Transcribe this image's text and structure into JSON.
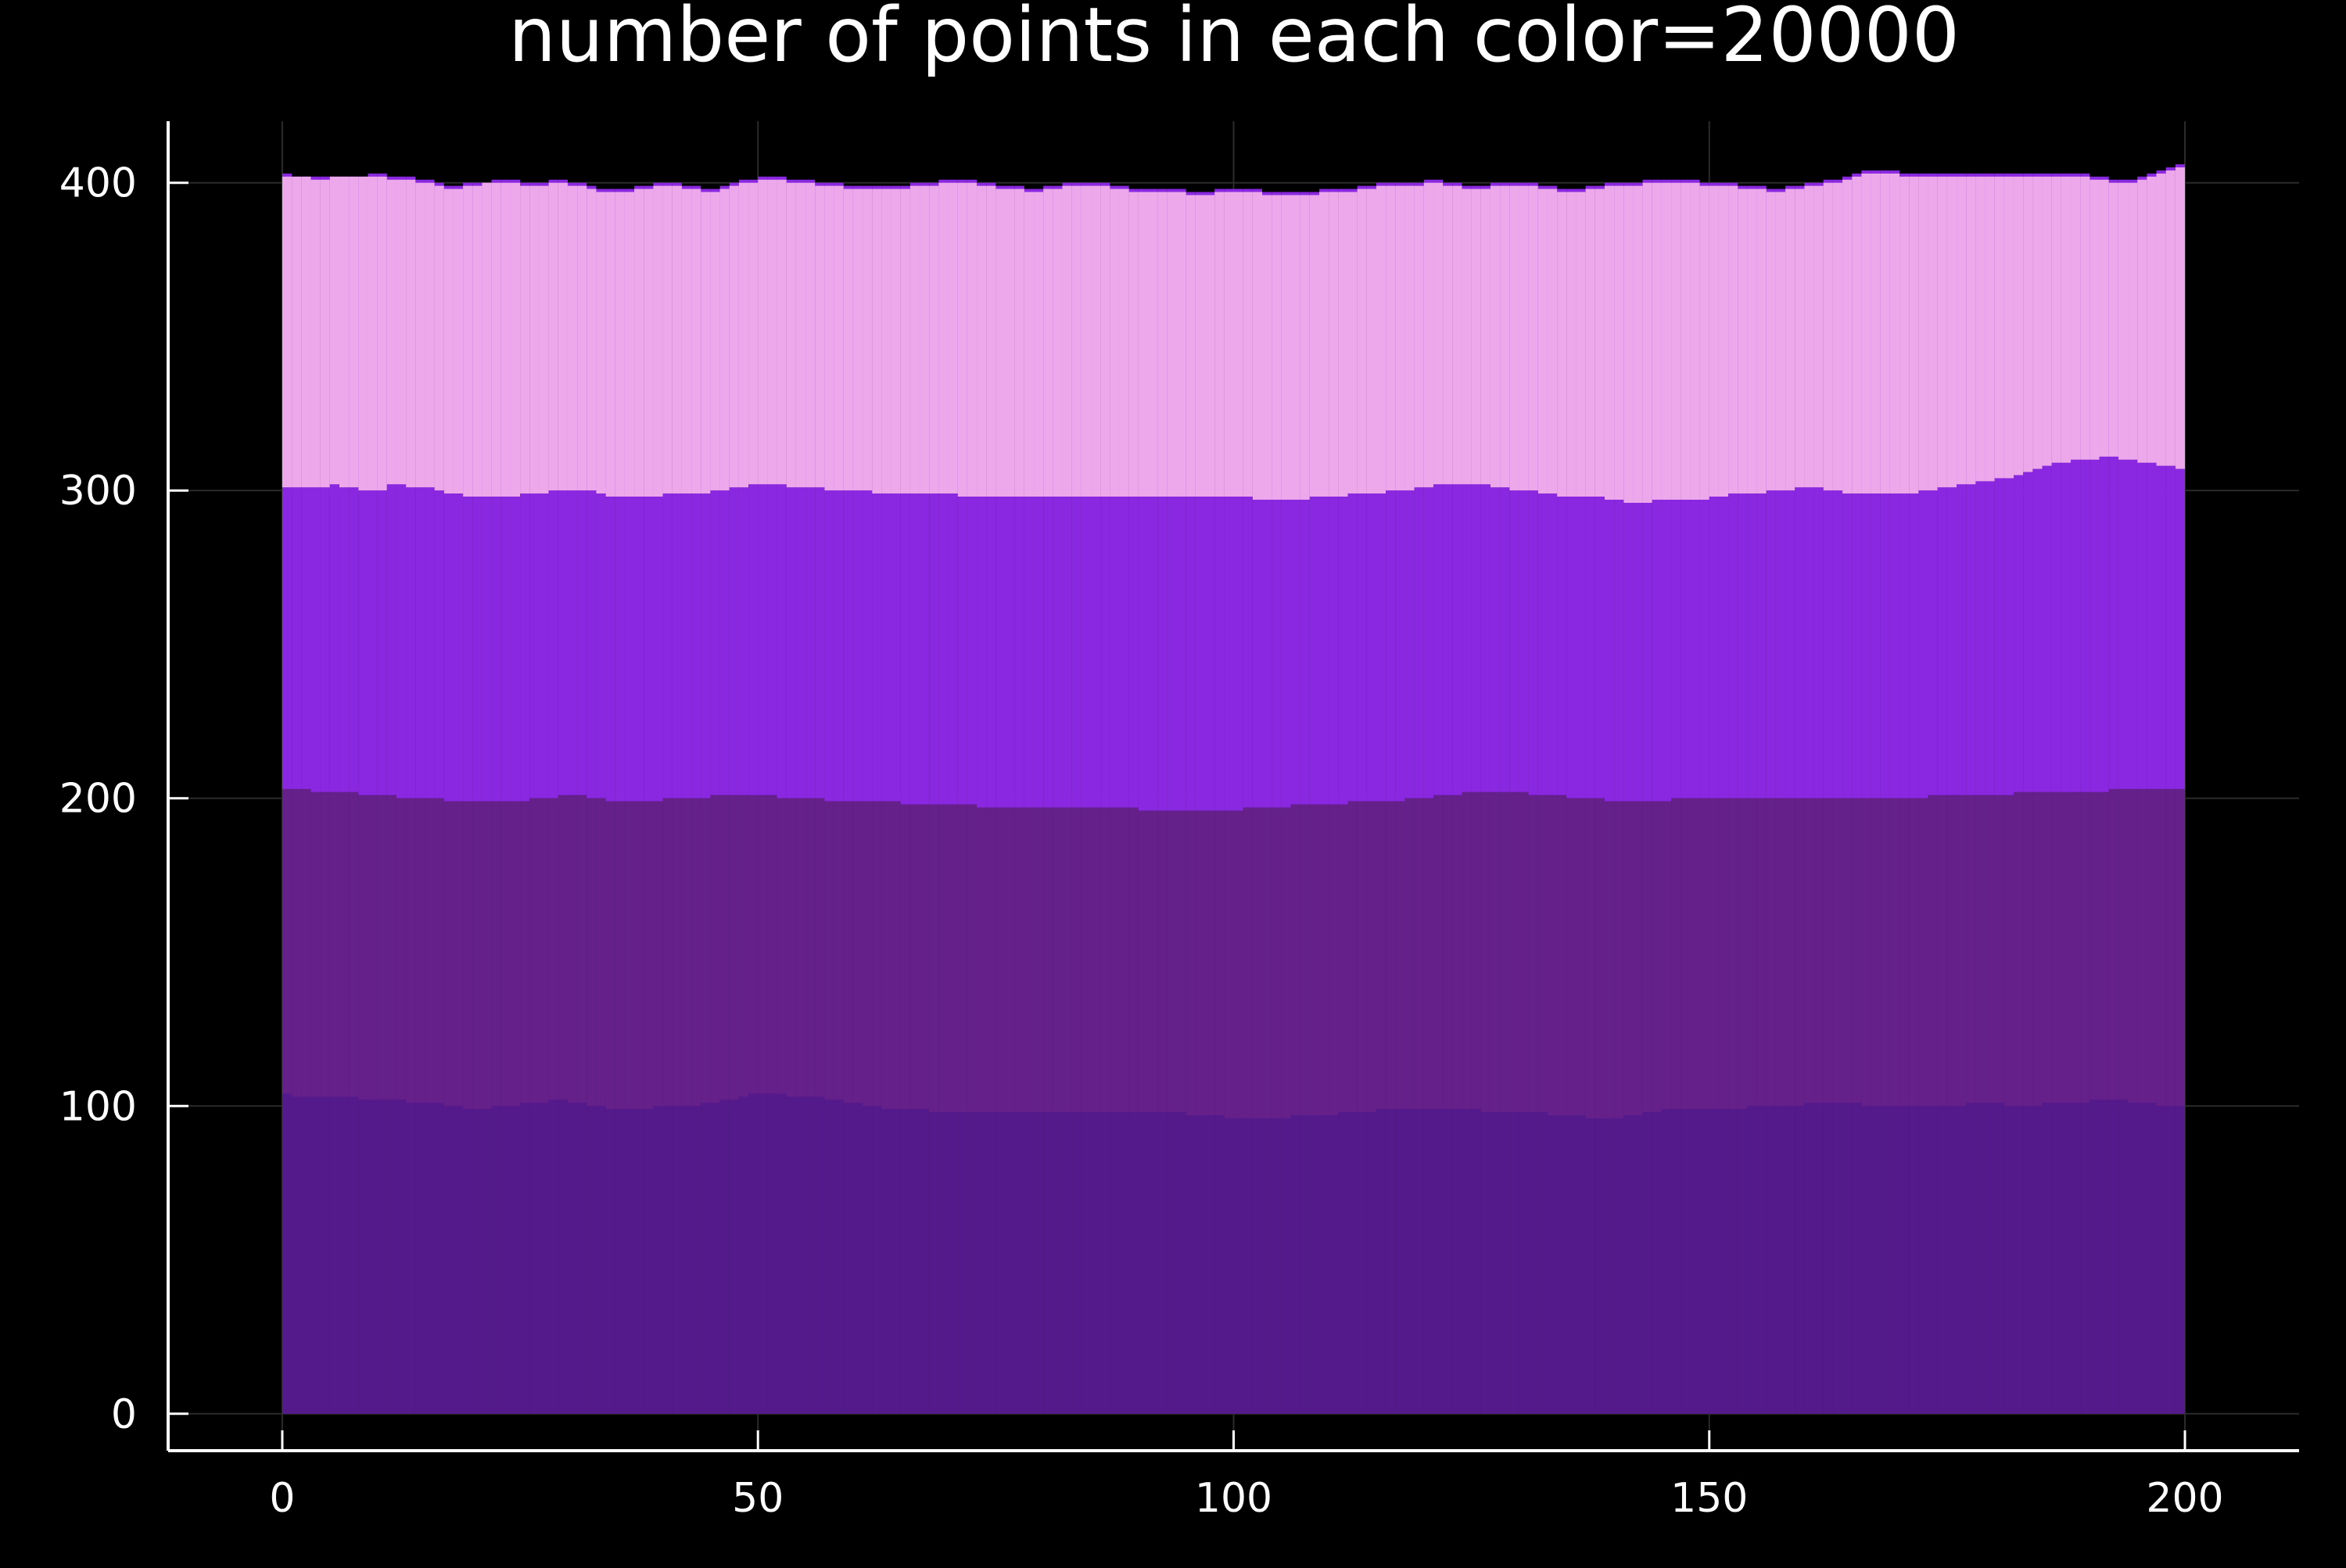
{
  "chart_data": {
    "type": "bar",
    "stacked": true,
    "title": "number of points in each color=20000",
    "xlabel": "",
    "ylabel": "",
    "xlim": [
      -12,
      212
    ],
    "ylim": [
      -12,
      420
    ],
    "xticks": [
      0,
      50,
      100,
      150,
      200
    ],
    "yticks": [
      0,
      100,
      200,
      300,
      400
    ],
    "grid": true,
    "legend": "none",
    "bin_count": 200,
    "bin_start": 0.5,
    "bin_width": 1,
    "series": [
      {
        "color": "#541a8b",
        "values": [
          104,
          103,
          103,
          103,
          103,
          103,
          103,
          103,
          102,
          102,
          102,
          102,
          102,
          101,
          101,
          101,
          101,
          100,
          100,
          99,
          99,
          99,
          100,
          100,
          100,
          101,
          101,
          101,
          102,
          102,
          101,
          101,
          100,
          100,
          99,
          99,
          99,
          99,
          99,
          100,
          100,
          100,
          100,
          100,
          101,
          101,
          102,
          102,
          103,
          104,
          104,
          104,
          104,
          103,
          103,
          103,
          103,
          102,
          102,
          101,
          101,
          100,
          100,
          99,
          99,
          99,
          99,
          99,
          98,
          98,
          98,
          98,
          98,
          98,
          98,
          98,
          98,
          98,
          98,
          98,
          98,
          98,
          98,
          98,
          98,
          98,
          98,
          98,
          98,
          98,
          98,
          98,
          98,
          98,
          98,
          97,
          97,
          97,
          97,
          96,
          96,
          96,
          96,
          96,
          96,
          96,
          97,
          97,
          97,
          97,
          97,
          98,
          98,
          98,
          98,
          99,
          99,
          99,
          99,
          99,
          99,
          99,
          99,
          99,
          99,
          99,
          98,
          98,
          98,
          98,
          98,
          98,
          98,
          97,
          97,
          97,
          97,
          96,
          96,
          96,
          96,
          97,
          97,
          98,
          98,
          99,
          99,
          99,
          99,
          99,
          99,
          99,
          99,
          99,
          100,
          100,
          100,
          100,
          100,
          100,
          101,
          101,
          101,
          101,
          101,
          101,
          100,
          100,
          100,
          100,
          100,
          100,
          100,
          100,
          100,
          100,
          100,
          101,
          101,
          101,
          101,
          100,
          100,
          100,
          100,
          101,
          101,
          101,
          101,
          101,
          102,
          102,
          102,
          102,
          101,
          101,
          101,
          100,
          100,
          100
        ],
        "tops": [
          203,
          203,
          203,
          202,
          202,
          202,
          202,
          202,
          201,
          201,
          201,
          201,
          200,
          200,
          200,
          200,
          200,
          199,
          199,
          199,
          199,
          199,
          199,
          199,
          199,
          199,
          200,
          200,
          200,
          201,
          201,
          201,
          200,
          200,
          199,
          199,
          199,
          199,
          199,
          199,
          200,
          200,
          200,
          200,
          200,
          201,
          201,
          201,
          201,
          201,
          201,
          201,
          200,
          200,
          200,
          200,
          200,
          199,
          199,
          199,
          199,
          199,
          199,
          199,
          199,
          198,
          198,
          198,
          198,
          198,
          198,
          198,
          198,
          197,
          197,
          197,
          197,
          197,
          197,
          197,
          197,
          197,
          197,
          197,
          197,
          197,
          197,
          197,
          197,
          197,
          196,
          196,
          196,
          196,
          196,
          196,
          196,
          196,
          196,
          196,
          196,
          197,
          197,
          197,
          197,
          197,
          198,
          198,
          198,
          198,
          198,
          198,
          199,
          199,
          199,
          199,
          199,
          199,
          200,
          200,
          200,
          201,
          201,
          201,
          202,
          202,
          202,
          202,
          202,
          202,
          202,
          201,
          201,
          201,
          201,
          200,
          200,
          200,
          200,
          199,
          199,
          199,
          199,
          199,
          199,
          199,
          200,
          200,
          200,
          200,
          200,
          200,
          200,
          200,
          200,
          200,
          200,
          200,
          200,
          200,
          200,
          200,
          200,
          200,
          200,
          200,
          200,
          200,
          200,
          200,
          200,
          200,
          200,
          201,
          201,
          201,
          201,
          201,
          201,
          201,
          201,
          201,
          202,
          202,
          202,
          202,
          202,
          202,
          202,
          202,
          202,
          202,
          203,
          203,
          203,
          203,
          203,
          203,
          203,
          203,
          202,
          202,
          202,
          202
        ]
      },
      {
        "color": "#65208a",
        "tops": [
          301,
          301,
          301,
          301,
          301,
          302,
          301,
          301,
          300,
          300,
          300,
          302,
          302,
          301,
          301,
          301,
          300,
          299,
          299,
          298,
          298,
          298,
          298,
          298,
          298,
          299,
          299,
          299,
          300,
          300,
          300,
          300,
          300,
          299,
          298,
          298,
          298,
          298,
          298,
          298,
          299,
          299,
          299,
          299,
          299,
          300,
          300,
          301,
          301,
          302,
          302,
          302,
          302,
          301,
          301,
          301,
          301,
          300,
          300,
          300,
          300,
          300,
          299,
          299,
          299,
          299,
          299,
          299,
          299,
          299,
          299,
          298,
          298,
          298,
          298,
          298,
          298,
          298,
          298,
          298,
          298,
          298,
          298,
          298,
          298,
          298,
          298,
          298,
          298,
          298,
          298,
          298,
          298,
          298,
          298,
          298,
          298,
          298,
          298,
          298,
          298,
          298,
          297,
          297,
          297,
          297,
          297,
          297,
          298,
          298,
          298,
          298,
          299,
          299,
          299,
          299,
          300,
          300,
          300,
          301,
          301,
          302,
          302,
          302,
          302,
          302,
          302,
          301,
          301,
          300,
          300,
          300,
          299,
          299,
          298,
          298,
          298,
          298,
          298,
          297,
          297,
          296,
          296,
          296,
          297,
          297,
          297,
          297,
          297,
          297,
          298,
          298,
          299,
          299,
          299,
          299,
          300,
          300,
          300,
          301,
          301,
          301,
          300,
          300,
          299,
          299,
          299,
          299,
          299,
          299,
          299,
          299,
          300,
          300,
          301,
          301,
          302,
          302,
          303,
          303,
          304,
          304,
          305,
          306,
          307,
          308,
          309,
          309,
          310,
          310,
          310,
          311,
          311,
          310,
          310,
          309,
          309,
          308,
          308,
          307,
          304,
          302,
          301,
          300,
          300,
          300,
          300,
          300,
          300,
          300
        ]
      },
      {
        "color": "#8a27e0",
        "tops": [
          403,
          402,
          402,
          402,
          402,
          402,
          402,
          402,
          402,
          403,
          403,
          402,
          402,
          402,
          401,
          401,
          400,
          399,
          399,
          400,
          400,
          400,
          401,
          401,
          401,
          400,
          400,
          400,
          401,
          401,
          400,
          400,
          399,
          398,
          398,
          398,
          398,
          399,
          399,
          400,
          400,
          400,
          399,
          399,
          398,
          398,
          399,
          400,
          401,
          401,
          402,
          402,
          402,
          401,
          401,
          401,
          400,
          400,
          400,
          399,
          399,
          399,
          399,
          399,
          399,
          399,
          400,
          400,
          400,
          401,
          401,
          401,
          401,
          400,
          400,
          399,
          399,
          399,
          398,
          398,
          399,
          399,
          400,
          400,
          400,
          400,
          400,
          399,
          399,
          398,
          398,
          398,
          398,
          398,
          398,
          397,
          397,
          397,
          398,
          398,
          398,
          398,
          398,
          397,
          397,
          397,
          397,
          397,
          397,
          398,
          398,
          398,
          398,
          399,
          399,
          400,
          400,
          400,
          400,
          400,
          401,
          401,
          400,
          400,
          399,
          399,
          399,
          400,
          400,
          400,
          400,
          400,
          399,
          399,
          398,
          398,
          398,
          399,
          399,
          400,
          400,
          400,
          400,
          401,
          401,
          401,
          401,
          401,
          401,
          400,
          400,
          400,
          400,
          399,
          399,
          399,
          398,
          398,
          399,
          399,
          400,
          400,
          401,
          401,
          402,
          403,
          404,
          404,
          404,
          404,
          403,
          403,
          403,
          403,
          403,
          403,
          403,
          403,
          403,
          403,
          403,
          403,
          403,
          403,
          403,
          403,
          403,
          403,
          403,
          403,
          402,
          402,
          401,
          401,
          401,
          402,
          403,
          404,
          405,
          406,
          405,
          404,
          404,
          403,
          403,
          403
        ]
      }
    ],
    "layers": [
      {
        "color": "#541a8b"
      },
      {
        "color": "#65208a"
      },
      {
        "color": "#8a27e0"
      },
      {
        "color": "#eda8eb"
      }
    ],
    "colors": {
      "background": "#000000",
      "axis": "#ffffff",
      "grid": "#2b2b2b",
      "text": "#ffffff"
    }
  }
}
